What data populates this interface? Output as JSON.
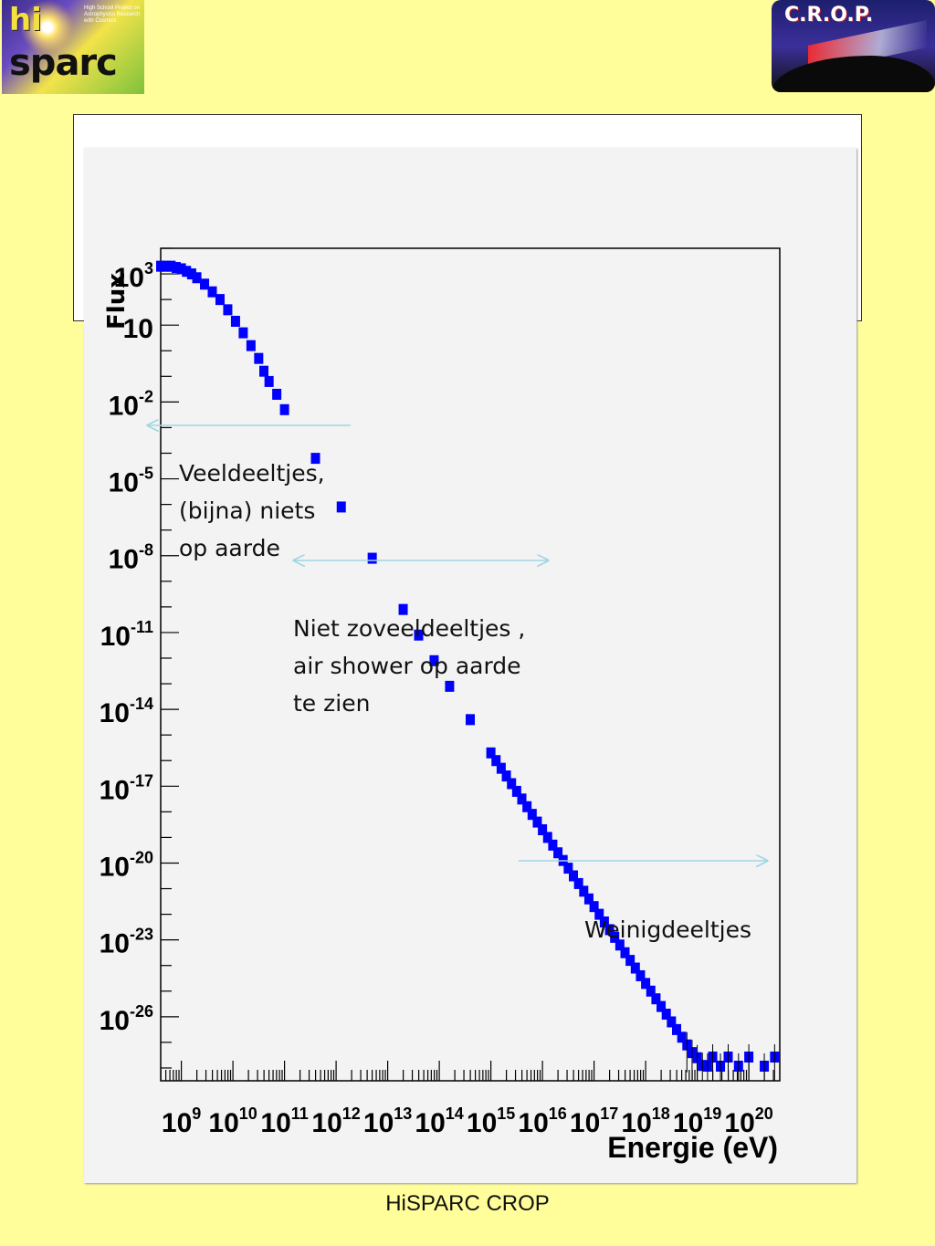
{
  "logos": {
    "left": {
      "name": "hisparc-logo",
      "tagline": "High School Project on Astrophysics Research with Cosmics"
    },
    "right": {
      "name": "crop-logo",
      "text": "C.R.O.P."
    }
  },
  "footer": "HiSPARC CROP",
  "annotations": [
    {
      "text": "Veeldeeltjes,\n(bijna) niets\nop aarde"
    },
    {
      "text": "Niet zoveeldeeltjes ,\nair shower op aarde\nte zien"
    },
    {
      "text": "Weinigdeeltjes"
    }
  ],
  "colors": {
    "background": "#fffe9a",
    "markers": "#0000ff",
    "arrows": "#9fd6e3"
  },
  "chart_data": {
    "type": "scatter",
    "title": "",
    "xlabel": "Energie (eV)",
    "ylabel": "Flux",
    "x_scale": "log",
    "y_scale": "log",
    "x_ticks": [
      "10^9",
      "10^10",
      "10^11",
      "10^12",
      "10^13",
      "10^14",
      "10^15",
      "10^16",
      "10^17",
      "10^18",
      "10^19",
      "10^20"
    ],
    "y_ticks": [
      "10^3",
      "10",
      "10^-2",
      "10^-5",
      "10^-8",
      "10^-11",
      "10^-14",
      "10^-17",
      "10^-20",
      "10^-23",
      "10^-26"
    ],
    "xlim_log10": [
      8.6,
      20.6
    ],
    "ylim_log10": [
      -28.5,
      4
    ],
    "grid": false,
    "series": [
      {
        "log10_energy": [
          8.6,
          8.7,
          8.8,
          8.9,
          9.0,
          9.1,
          9.2,
          9.3,
          9.45,
          9.6,
          9.75,
          9.9,
          10.05,
          10.2,
          10.35,
          10.5,
          10.6,
          10.7,
          10.85,
          11.0,
          11.6,
          12.1,
          12.7,
          13.3,
          13.6,
          13.9,
          14.2,
          14.6,
          15.0,
          15.1,
          15.2,
          15.3,
          15.4,
          15.5,
          15.6,
          15.7,
          15.8,
          15.9,
          16.0,
          16.1,
          16.2,
          16.3,
          16.4,
          16.5,
          16.6,
          16.7,
          16.8,
          16.9,
          17.0,
          17.1,
          17.2,
          17.3,
          17.4,
          17.5,
          17.6,
          17.7,
          17.8,
          17.9,
          18.0,
          18.1,
          18.2,
          18.3,
          18.4,
          18.5,
          18.6,
          18.7,
          18.8,
          18.9,
          19.0,
          19.1,
          19.2,
          19.3,
          19.45,
          19.6,
          19.8,
          20.0,
          20.3,
          20.5
        ],
        "log10_flux": [
          3.3,
          3.3,
          3.3,
          3.25,
          3.2,
          3.1,
          3.0,
          2.85,
          2.6,
          2.3,
          2.0,
          1.6,
          1.15,
          0.7,
          0.2,
          -0.3,
          -0.8,
          -1.2,
          -1.7,
          -2.3,
          -4.2,
          -6.1,
          -8.1,
          -10.1,
          -11.1,
          -12.1,
          -13.1,
          -14.4,
          -15.7,
          -16.0,
          -16.3,
          -16.6,
          -16.9,
          -17.2,
          -17.5,
          -17.8,
          -18.1,
          -18.4,
          -18.7,
          -19.0,
          -19.3,
          -19.6,
          -19.9,
          -20.2,
          -20.5,
          -20.8,
          -21.1,
          -21.4,
          -21.7,
          -22.0,
          -22.3,
          -22.6,
          -22.9,
          -23.2,
          -23.5,
          -23.8,
          -24.1,
          -24.4,
          -24.7,
          -25.0,
          -25.3,
          -25.6,
          -25.9,
          -26.2,
          -26.5,
          -26.8,
          -27.1,
          -27.4,
          -27.6,
          -27.9,
          -28.1,
          -28.4,
          -28.8,
          -29.1,
          -29.6,
          -30.0,
          -30.8,
          -31.5
        ]
      }
    ]
  }
}
